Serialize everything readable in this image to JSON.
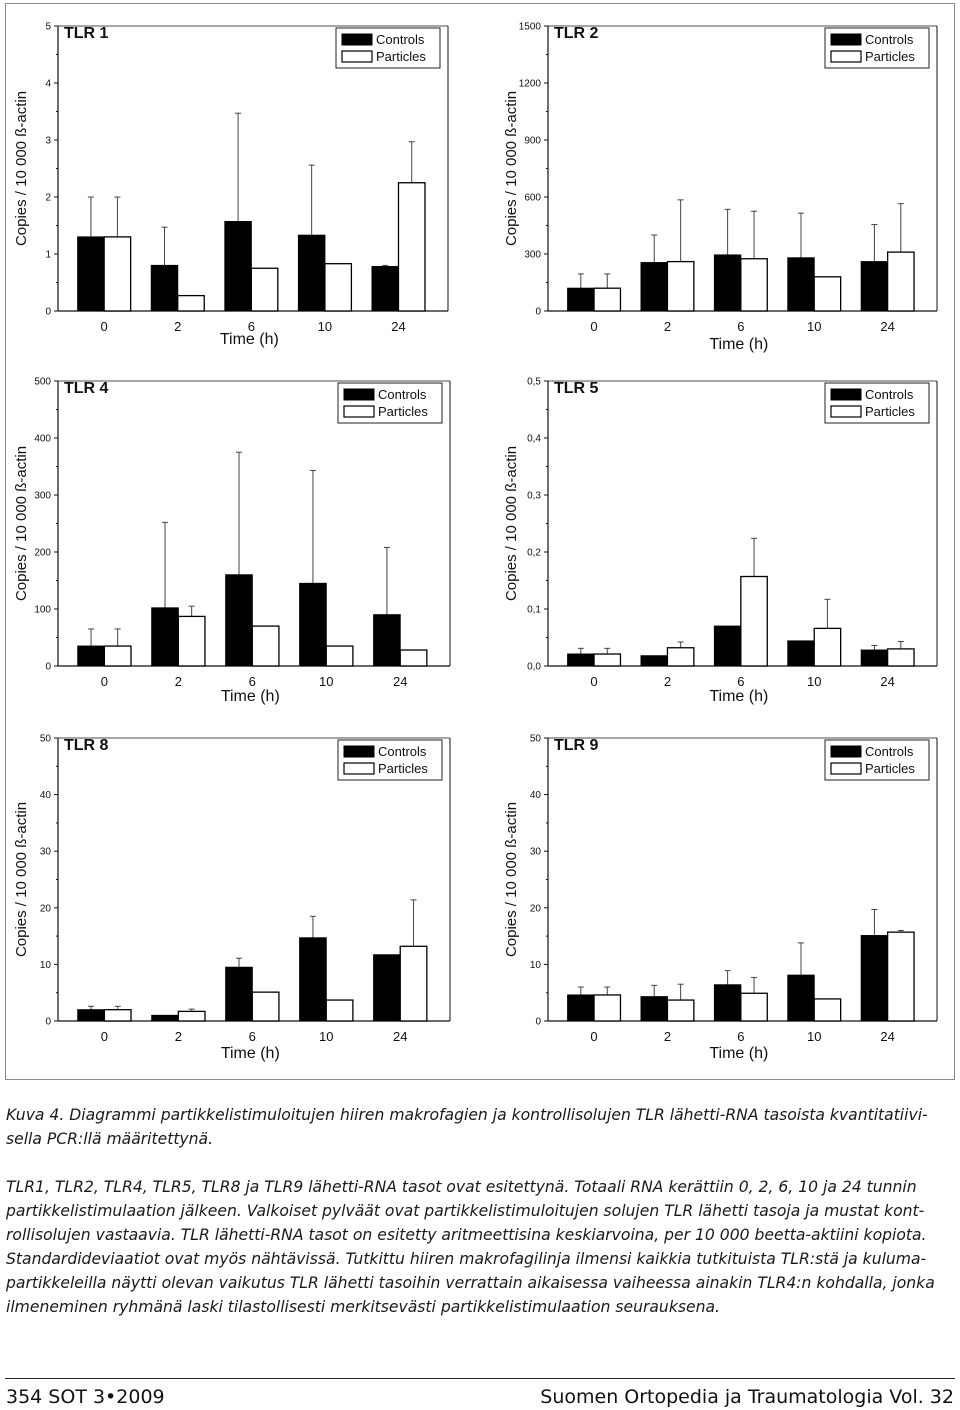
{
  "figure": {
    "legend": {
      "controls": "Controls",
      "particles": "Particles"
    },
    "x_axis_label": "Time (h)",
    "y_axis_label": "Copies / 10 000 ß-actin"
  },
  "chart_data": [
    {
      "type": "bar",
      "title": "TLR 1",
      "xlabel": "Time (h)",
      "ylabel": "Copies / 10 000 ß-actin",
      "categories": [
        "0",
        "2",
        "6",
        "10",
        "24"
      ],
      "ylim": [
        0,
        5
      ],
      "yticks": [
        "0",
        "1",
        "2",
        "3",
        "4",
        "5"
      ],
      "ytick_values": [
        0,
        1,
        2,
        3,
        4,
        5
      ],
      "legend_position": "top-right",
      "grid": false,
      "series": [
        {
          "name": "Controls",
          "color": "#000000",
          "values": [
            1.3,
            0.8,
            1.57,
            1.33,
            0.78
          ],
          "error": [
            0.7,
            0.67,
            1.9,
            1.23,
            0.02
          ]
        },
        {
          "name": "Particles",
          "color": "#ffffff",
          "values": [
            1.3,
            0.27,
            0.75,
            0.83,
            2.25
          ],
          "error": [
            0.7,
            0.0,
            0.0,
            0.0,
            0.72
          ]
        }
      ]
    },
    {
      "type": "bar",
      "title": "TLR 2",
      "xlabel": "Time (h)",
      "ylabel": "Copies / 10 000 ß-actin",
      "categories": [
        "0",
        "2",
        "6",
        "10",
        "24"
      ],
      "ylim": [
        0,
        1500
      ],
      "yticks": [
        "0",
        "300",
        "600",
        "900",
        "1200",
        "1500"
      ],
      "ytick_values": [
        0,
        300,
        600,
        900,
        1200,
        1500
      ],
      "legend_position": "top-right",
      "grid": false,
      "series": [
        {
          "name": "Controls",
          "color": "#000000",
          "values": [
            120,
            255,
            295,
            280,
            260
          ],
          "error": [
            75,
            145,
            240,
            235,
            195
          ]
        },
        {
          "name": "Particles",
          "color": "#ffffff",
          "values": [
            120,
            260,
            275,
            180,
            310
          ],
          "error": [
            75,
            325,
            250,
            0,
            255
          ]
        }
      ]
    },
    {
      "type": "bar",
      "title": "TLR 4",
      "xlabel": "Time (h)",
      "ylabel": "Copies / 10 000 ß-actin",
      "categories": [
        "0",
        "2",
        "6",
        "10",
        "24"
      ],
      "ylim": [
        0,
        500
      ],
      "yticks": [
        "0",
        "100",
        "200",
        "300",
        "400",
        "500"
      ],
      "ytick_values": [
        0,
        100,
        200,
        300,
        400,
        500
      ],
      "legend_position": "top-right",
      "grid": false,
      "series": [
        {
          "name": "Controls",
          "color": "#000000",
          "values": [
            35,
            102,
            160,
            145,
            90
          ],
          "error": [
            30,
            150,
            215,
            198,
            118
          ]
        },
        {
          "name": "Particles",
          "color": "#ffffff",
          "values": [
            35,
            87,
            70,
            35,
            28
          ],
          "error": [
            30,
            18,
            0,
            0,
            0
          ]
        }
      ]
    },
    {
      "type": "bar",
      "title": "TLR 5",
      "xlabel": "Time (h)",
      "ylabel": "Copies / 10 000 ß-actin",
      "categories": [
        "0",
        "2",
        "6",
        "10",
        "24"
      ],
      "ylim": [
        0,
        0.5
      ],
      "yticks": [
        "0,0",
        "0,1",
        "0,2",
        "0,3",
        "0,4",
        "0,5"
      ],
      "ytick_values": [
        0,
        0.1,
        0.2,
        0.3,
        0.4,
        0.5
      ],
      "legend_position": "top-right",
      "grid": false,
      "series": [
        {
          "name": "Controls",
          "color": "#000000",
          "values": [
            0.021,
            0.018,
            0.07,
            0.044,
            0.028
          ],
          "error": [
            0.01,
            0.0,
            0.0,
            0.0,
            0.008
          ]
        },
        {
          "name": "Particles",
          "color": "#ffffff",
          "values": [
            0.021,
            0.032,
            0.157,
            0.066,
            0.03
          ],
          "error": [
            0.01,
            0.01,
            0.067,
            0.051,
            0.013
          ]
        }
      ]
    },
    {
      "type": "bar",
      "title": "TLR 8",
      "xlabel": "Time (h)",
      "ylabel": "Copies / 10 000 ß-actin",
      "categories": [
        "0",
        "2",
        "6",
        "10",
        "24"
      ],
      "ylim": [
        0,
        50
      ],
      "yticks": [
        "0",
        "10",
        "20",
        "30",
        "40",
        "50"
      ],
      "ytick_values": [
        0,
        10,
        20,
        30,
        40,
        50
      ],
      "legend_position": "top-right",
      "grid": false,
      "series": [
        {
          "name": "Controls",
          "color": "#000000",
          "values": [
            2.0,
            1.0,
            9.5,
            14.7,
            11.7
          ],
          "error": [
            0.6,
            0.0,
            1.6,
            3.8,
            0.0
          ]
        },
        {
          "name": "Particles",
          "color": "#ffffff",
          "values": [
            2.0,
            1.7,
            5.1,
            3.7,
            13.2
          ],
          "error": [
            0.6,
            0.4,
            0.0,
            0.0,
            8.2
          ]
        }
      ]
    },
    {
      "type": "bar",
      "title": "TLR 9",
      "xlabel": "Time (h)",
      "ylabel": "Copies / 10 000 ß-actin",
      "categories": [
        "0",
        "2",
        "6",
        "10",
        "24"
      ],
      "ylim": [
        0,
        50
      ],
      "yticks": [
        "0",
        "10",
        "20",
        "30",
        "40",
        "50"
      ],
      "ytick_values": [
        0,
        10,
        20,
        30,
        40,
        50
      ],
      "legend_position": "top-right",
      "grid": false,
      "series": [
        {
          "name": "Controls",
          "color": "#000000",
          "values": [
            4.6,
            4.3,
            6.4,
            8.1,
            15.1
          ],
          "error": [
            1.4,
            2.0,
            2.5,
            5.7,
            4.6
          ]
        },
        {
          "name": "Particles",
          "color": "#ffffff",
          "values": [
            4.6,
            3.7,
            4.9,
            3.9,
            15.7
          ],
          "error": [
            1.4,
            2.8,
            2.8,
            0.0,
            0.3
          ]
        }
      ]
    }
  ],
  "caption": {
    "line1": "Kuva 4. Diagrammi partikkelistimuloitujen hiiren makrofagien ja kontrollisolujen TLR lähetti-RNA tasoista kvantitatiivi-",
    "line2": "sella PCR:llä määritettynä.",
    "line3": "TLR1, TLR2, TLR4, TLR5, TLR8 ja TLR9 lähetti-RNA tasot ovat esitettynä. Totaali RNA kerättiin 0, 2, 6, 10 ja 24 tunnin",
    "line4": "partikkelistimulaation jälkeen. Valkoiset pylväät ovat partikkelistimuloitujen solujen TLR lähetti tasoja ja mustat kont-",
    "line5": "rollisolujen vastaavia. TLR lähetti-RNA tasot on esitetty aritmeettisina keskiarvoina, per 10 000 beetta-aktiini kopiota.",
    "line6": "Standardideviaatiot ovat myös nähtävissä. Tutkittu hiiren makrofagilinja ilmensi kaikkia tutkituista TLR:stä ja kuluma-",
    "line7": "partikkeleilla näytti olevan vaikutus TLR lähetti tasoihin verrattain aikaisessa vaiheessa ainakin TLR4:n kohdalla, jonka",
    "line8": "ilmeneminen ryhmänä laski tilastollisesti merkitsevästi partikkelistimulaation seurauksena."
  },
  "footer": {
    "left": "354  SOT  3•2009",
    "right": "Suomen Ortopedia ja Traumatologia  Vol. 32"
  }
}
